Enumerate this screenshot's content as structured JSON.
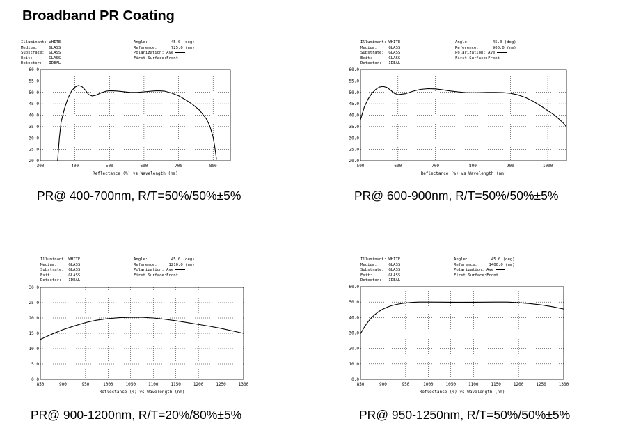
{
  "title": "Broadband PR Coating",
  "chart_data": [
    {
      "type": "line",
      "info_left": [
        "Illuminant: WHITE",
        "Medium:     GLASS",
        "Substrate:  GLASS",
        "Exit:       GLASS",
        "Detector:   IDEAL"
      ],
      "info_right": [
        "Angle:          45.0 (deg)",
        "Reference:      725.0 (nm)",
        "Polarization: Ave",
        "First Surface:Front"
      ],
      "xlabel": "Reflectance (%)  vs  Wavelength (nm)",
      "xlim": [
        300,
        850
      ],
      "ylim": [
        20,
        60
      ],
      "x_ticks": [
        300,
        400,
        500,
        600,
        700,
        800
      ],
      "y_ticks": [
        "20.0",
        "25.0",
        "30.0",
        "35.0",
        "40.0",
        "45.0",
        "50.0",
        "55.0",
        "60.0"
      ],
      "series": [
        {
          "x": [
            350,
            355,
            360,
            370,
            380,
            390,
            400,
            410,
            420,
            430,
            440,
            450,
            460,
            470,
            480,
            490,
            500,
            520,
            540,
            560,
            580,
            600,
            620,
            640,
            660,
            680,
            700,
            720,
            740,
            760,
            780,
            790,
            800,
            805,
            810
          ],
          "values": [
            20,
            30,
            37,
            43,
            47.5,
            50.5,
            52.3,
            53,
            52.6,
            51,
            49,
            48.4,
            48.7,
            49.4,
            50,
            50.5,
            50.7,
            50.6,
            50.3,
            50,
            50,
            50.2,
            50.5,
            50.7,
            50.5,
            49.7,
            48.5,
            46.8,
            44.8,
            42.3,
            38.5,
            35.5,
            30.5,
            26,
            20.5
          ]
        }
      ],
      "caption": "PR@ 400-700nm, R/T=50%/50%±5%"
    },
    {
      "type": "line",
      "info_left": [
        "Illuminant: WHITE",
        "Medium:     GLASS",
        "Substrate:  GLASS",
        "Exit:       GLASS",
        "Detector:   IDEAL"
      ],
      "info_right": [
        "Angle:          45.0 (deg)",
        "Reference:      900.0 (nm)",
        "Polarization: Ave",
        "First Surface:Front"
      ],
      "xlabel": "Reflectance (%)  vs  Wavelength (nm)",
      "xlim": [
        500,
        1050
      ],
      "ylim": [
        20,
        60
      ],
      "x_ticks": [
        500,
        600,
        700,
        800,
        900,
        1000
      ],
      "y_ticks": [
        "20.0",
        "25.0",
        "30.0",
        "35.0",
        "40.0",
        "45.0",
        "50.0",
        "55.0",
        "60.0"
      ],
      "series": [
        {
          "x": [
            500,
            510,
            520,
            530,
            540,
            550,
            560,
            570,
            580,
            590,
            600,
            620,
            640,
            660,
            680,
            700,
            720,
            740,
            760,
            780,
            800,
            820,
            840,
            860,
            880,
            900,
            920,
            940,
            960,
            980,
            1000,
            1020,
            1040,
            1050
          ],
          "values": [
            38,
            43.5,
            47,
            49.5,
            51.2,
            52.3,
            52.6,
            52.2,
            51,
            49.6,
            49,
            49.4,
            50.5,
            51.3,
            51.6,
            51.5,
            51.1,
            50.6,
            50.2,
            49.9,
            49.8,
            49.9,
            50,
            50,
            49.9,
            49.6,
            48.9,
            47.8,
            46.2,
            44.2,
            42,
            39.8,
            36.8,
            35
          ]
        }
      ],
      "caption": "PR@ 600-900nm, R/T=50%/50%±5%"
    },
    {
      "type": "line",
      "info_left": [
        "Illuminant: WHITE",
        "Medium:     GLASS",
        "Substrate:  GLASS",
        "Exit:       GLASS",
        "Detector:   IDEAL"
      ],
      "info_right": [
        "Angle:          45.0 (deg)",
        "Reference:     1210.0 (nm)",
        "Polarization: Ave",
        "First Surface:Front"
      ],
      "xlabel": "Reflectance (%)  vs  Wavelength (nm)",
      "xlim": [
        850,
        1300
      ],
      "ylim": [
        0,
        30
      ],
      "x_ticks": [
        850,
        900,
        950,
        1000,
        1050,
        1100,
        1150,
        1200,
        1250,
        1300
      ],
      "y_ticks": [
        "0.0",
        "5.0",
        "10.0",
        "15.0",
        "20.0",
        "25.0",
        "30.0"
      ],
      "series": [
        {
          "x": [
            850,
            875,
            900,
            925,
            950,
            975,
            1000,
            1025,
            1050,
            1075,
            1100,
            1125,
            1150,
            1175,
            1200,
            1225,
            1250,
            1275,
            1300
          ],
          "values": [
            13,
            14.7,
            16.2,
            17.4,
            18.5,
            19.3,
            19.8,
            20.1,
            20.2,
            20.2,
            20,
            19.6,
            19.1,
            18.5,
            17.9,
            17.3,
            16.6,
            15.8,
            15
          ]
        }
      ],
      "caption": "PR@ 900-1200nm, R/T=20%/80%±5%"
    },
    {
      "type": "line",
      "info_left": [
        "Illuminant: WHITE",
        "Medium:     GLASS",
        "Substrate:  GLASS",
        "Exit:       GLASS",
        "Detector:   IDEAL"
      ],
      "info_right": [
        "Angle:          45.0 (deg)",
        "Reference:     1400.0 (nm)",
        "Polarization: Ave",
        "First Surface:Front"
      ],
      "xlabel": "Reflectance (%)  vs  Wavelength (nm)",
      "xlim": [
        850,
        1300
      ],
      "ylim": [
        0,
        60
      ],
      "x_ticks": [
        850,
        900,
        950,
        1000,
        1050,
        1100,
        1150,
        1200,
        1250,
        1300
      ],
      "y_ticks": [
        "0.0",
        "10.0",
        "20.0",
        "30.0",
        "40.0",
        "50.0",
        "60.0"
      ],
      "series": [
        {
          "x": [
            850,
            860,
            870,
            880,
            890,
            900,
            910,
            920,
            930,
            940,
            950,
            960,
            970,
            980,
            1000,
            1050,
            1100,
            1150,
            1175,
            1200,
            1225,
            1250,
            1275,
            1300
          ],
          "values": [
            29.5,
            34.5,
            38.5,
            41.5,
            43.8,
            45.5,
            46.8,
            47.8,
            48.5,
            49,
            49.4,
            49.7,
            49.9,
            50,
            50,
            49.9,
            49.9,
            50,
            50,
            49.6,
            49,
            48.2,
            47,
            45.5
          ]
        }
      ],
      "caption": "PR@ 950-1250nm, R/T=50%/50%±5%"
    }
  ]
}
